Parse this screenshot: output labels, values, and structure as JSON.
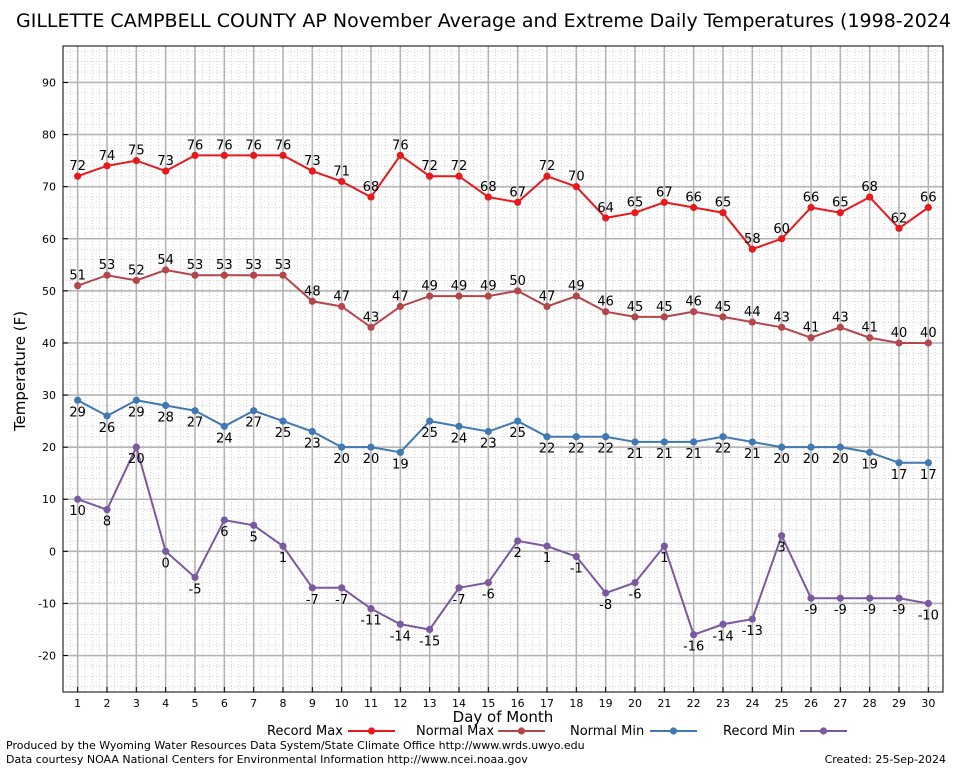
{
  "chart_data": {
    "type": "line",
    "title": "GILLETTE CAMPBELL COUNTY AP November Average and Extreme Daily Temperatures (1998-2024",
    "xlabel": "Day of Month",
    "ylabel": "Temperature (F)",
    "x": [
      1,
      2,
      3,
      4,
      5,
      6,
      7,
      8,
      9,
      10,
      11,
      12,
      13,
      14,
      15,
      16,
      17,
      18,
      19,
      20,
      21,
      22,
      23,
      24,
      25,
      26,
      27,
      28,
      29,
      30
    ],
    "xlim": [
      0.5,
      30.5
    ],
    "ylim": [
      -27,
      97
    ],
    "yticks": [
      -20,
      -10,
      0,
      10,
      20,
      30,
      40,
      50,
      60,
      70,
      80,
      90
    ],
    "grid": true,
    "legend_position": "bottom",
    "series": [
      {
        "name": "Record Max",
        "color": "#e8191c",
        "label_position": "above",
        "values": [
          72,
          74,
          75,
          73,
          76,
          76,
          76,
          76,
          73,
          71,
          68,
          76,
          72,
          72,
          68,
          67,
          72,
          70,
          64,
          65,
          67,
          66,
          65,
          58,
          60,
          66,
          65,
          68,
          62,
          66
        ]
      },
      {
        "name": "Normal Max",
        "color": "#b3464a",
        "label_position": "above",
        "values": [
          51,
          53,
          52,
          54,
          53,
          53,
          53,
          53,
          48,
          47,
          43,
          47,
          49,
          49,
          49,
          50,
          47,
          49,
          46,
          45,
          45,
          46,
          45,
          44,
          43,
          41,
          43,
          41,
          40,
          40
        ]
      },
      {
        "name": "Normal Min",
        "color": "#3f78b2",
        "label_position": "below",
        "values": [
          29,
          26,
          29,
          28,
          27,
          24,
          27,
          25,
          23,
          20,
          20,
          19,
          25,
          24,
          23,
          25,
          22,
          22,
          22,
          21,
          21,
          21,
          22,
          21,
          20,
          20,
          20,
          19,
          17,
          17
        ]
      },
      {
        "name": "Record Min",
        "color": "#7b59a0",
        "label_position": "below",
        "values": [
          10,
          8,
          20,
          0,
          -5,
          6,
          5,
          1,
          -7,
          -7,
          -11,
          -14,
          -15,
          -7,
          -6,
          2,
          1,
          -1,
          -8,
          -6,
          1,
          -16,
          -14,
          -13,
          3,
          -9,
          -9,
          -9,
          -9,
          -10
        ]
      }
    ]
  },
  "footer": {
    "producer": "Produced by the Wyoming Water Resources Data System/State Climate Office http://www.wrds.uwyo.edu",
    "source": "Data courtesy NOAA National Centers for Environmental Information http://www.ncei.noaa.gov",
    "created": "Created:  25-Sep-2024"
  }
}
